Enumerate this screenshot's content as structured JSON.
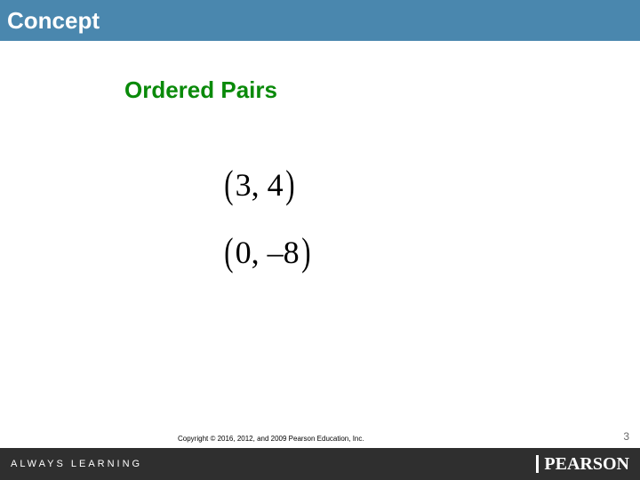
{
  "header": {
    "title": "Concept",
    "bg_color": "#4a87ae",
    "text_color": "#ffffff"
  },
  "section": {
    "title": "Ordered Pairs",
    "title_color": "#0a8a0a"
  },
  "pairs": [
    {
      "x": "3",
      "y": "4"
    },
    {
      "x": "0",
      "y": "–8"
    }
  ],
  "footer": {
    "bg_color": "#2f2f2f",
    "always_learning": "ALWAYS LEARNING",
    "pearson": "PEARSON"
  },
  "copyright": "Copyright © 2016, 2012, and 2009 Pearson Education, Inc.",
  "page_number": "3",
  "colors": {
    "body_bg": "#ffffff",
    "pair_text": "#000000"
  }
}
